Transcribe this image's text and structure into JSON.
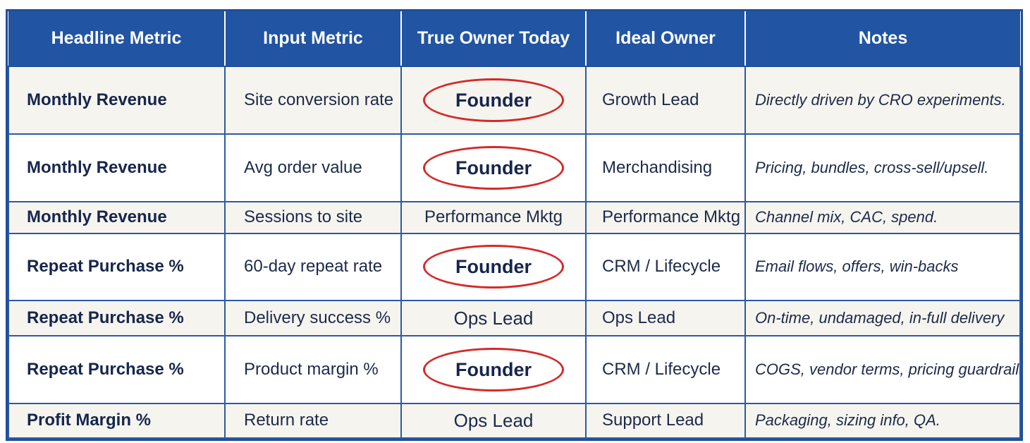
{
  "table": {
    "headers": [
      "Headline Metric",
      "Input Metric",
      "True Owner Today",
      "Ideal Owner",
      "Notes"
    ],
    "rows": [
      {
        "headline": "Monthly Revenue",
        "input": "Site conversion rate",
        "owner": "Founder",
        "owner_circled": true,
        "ideal": "Growth Lead",
        "notes": "Directly driven by CRO experiments."
      },
      {
        "headline": "Monthly Revenue",
        "input": "Avg order value",
        "owner": "Founder",
        "owner_circled": true,
        "ideal": "Merchandising",
        "notes": "Pricing, bundles, cross-sell/upsell."
      },
      {
        "headline": "Monthly Revenue",
        "input": "Sessions to site",
        "owner": "Performance Mktg",
        "owner_circled": false,
        "ideal": "Performance Mktg",
        "notes": "Channel mix, CAC, spend."
      },
      {
        "headline": "Repeat Purchase %",
        "input": "60-day repeat rate",
        "owner": "Founder",
        "owner_circled": true,
        "ideal": "CRM / Lifecycle",
        "notes": "Email flows, offers, win-backs"
      },
      {
        "headline": "Repeat Purchase %",
        "input": "Delivery success %",
        "owner": "Ops Lead",
        "owner_circled": false,
        "ideal": "Ops Lead",
        "notes": "On-time, undamaged, in-full delivery"
      },
      {
        "headline": "Repeat Purchase %",
        "input": "Product margin %",
        "owner": "Founder",
        "owner_circled": true,
        "ideal": "CRM / Lifecycle",
        "notes": "COGS, vendor terms, pricing guardrails"
      },
      {
        "headline": "Profit Margin %",
        "input": "Return rate",
        "owner": "Ops Lead",
        "owner_circled": false,
        "ideal": "Support Lead",
        "notes": "Packaging, sizing info, QA."
      }
    ]
  },
  "colors": {
    "header_bg": "#2154a3",
    "border": "#2b5aa5",
    "highlight_circle": "#d42a2a",
    "text": "#16264d"
  }
}
